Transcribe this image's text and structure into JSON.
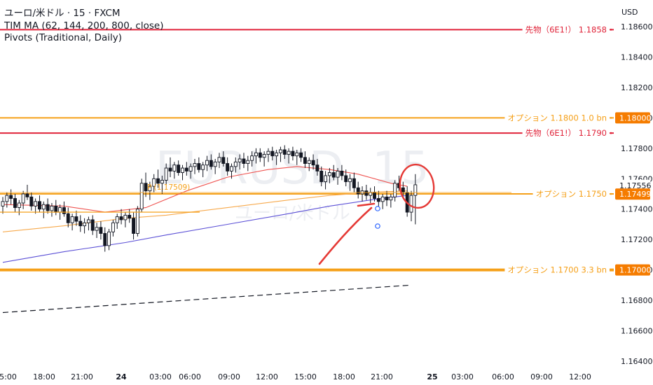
{
  "header": {
    "symbol": "ユーロ/米ドル · 15 · FXCM",
    "indicator_ma": "TIM MA (62, 144, 200, 800, close)",
    "indicator_pivots": "Pivots (Traditional, Daily)",
    "currency": "USD"
  },
  "watermark": {
    "symbol": "EURUSD, 15",
    "name": "ユーロ/米ドル"
  },
  "colors": {
    "futures_line": "#e0243a",
    "option_line": "#f5a019",
    "candle": "#131722",
    "ma_fast": "#ef5350",
    "ma_mid": "#f7a94b",
    "ma_slow": "#5b50d6",
    "annotation": "#e53935",
    "label_bg": "#f57c00"
  },
  "chart_data": {
    "type": "candlestick",
    "ylim": [
      1.1635,
      1.1872
    ],
    "y_ticks": [
      "1.18600",
      "1.18400",
      "1.18200",
      "1.18000",
      "1.17800",
      "1.17600",
      "1.17400",
      "1.17200",
      "1.17000",
      "1.16800",
      "1.16600",
      "1.16400"
    ],
    "x_ticks": [
      "15:00",
      "18:00",
      "21:00",
      "24",
      "03:00",
      "06:00",
      "09:00",
      "12:00",
      "15:00",
      "18:00",
      "21:00",
      "25",
      "03:00",
      "06:00",
      "09:00",
      "12:00"
    ],
    "price_labels": [
      {
        "text": "1.18000",
        "value": 1.18,
        "style": "filled"
      },
      {
        "text": "1.17556",
        "value": 1.17556,
        "style": "plain"
      },
      {
        "text": "1.17499",
        "value": 1.17499,
        "style": "filled"
      },
      {
        "text": "1.17000",
        "value": 1.17,
        "style": "filled"
      }
    ],
    "horizontal_levels": [
      {
        "value": 1.1858,
        "label": "先物（6E1!）  1.1858",
        "kind": "futures",
        "width": 2
      },
      {
        "value": 1.18,
        "label": "オプション  1.1800  1.0 bn",
        "kind": "option",
        "width": 2
      },
      {
        "value": 1.179,
        "label": "先物（6E1!）  1.1790",
        "kind": "futures",
        "width": 2
      },
      {
        "value": 1.175,
        "label": "オプション  1.1750",
        "kind": "option",
        "width": 2
      },
      {
        "value": 1.17,
        "label": "オプション  1.1700  3.3 bn",
        "kind": "option",
        "width": 4
      }
    ],
    "pivot": {
      "label": "P (1.17509)",
      "value": 1.17509
    },
    "candles": [
      [
        1.1742,
        1.1748,
        1.1737,
        1.1745
      ],
      [
        1.1745,
        1.1751,
        1.1741,
        1.1749
      ],
      [
        1.1749,
        1.1753,
        1.1743,
        1.1747
      ],
      [
        1.1747,
        1.175,
        1.1738,
        1.1741
      ],
      [
        1.1741,
        1.1746,
        1.1736,
        1.1744
      ],
      [
        1.1744,
        1.1752,
        1.174,
        1.175
      ],
      [
        1.175,
        1.1756,
        1.1746,
        1.1748
      ],
      [
        1.1748,
        1.1751,
        1.1739,
        1.1742
      ],
      [
        1.1742,
        1.1747,
        1.1737,
        1.1745
      ],
      [
        1.1745,
        1.1749,
        1.1738,
        1.174
      ],
      [
        1.174,
        1.1745,
        1.1734,
        1.1743
      ],
      [
        1.1743,
        1.1747,
        1.1737,
        1.1739
      ],
      [
        1.1739,
        1.1744,
        1.1735,
        1.1742
      ],
      [
        1.1742,
        1.1746,
        1.1736,
        1.1738
      ],
      [
        1.1738,
        1.1743,
        1.1733,
        1.1741
      ],
      [
        1.1741,
        1.1745,
        1.1735,
        1.1737
      ],
      [
        1.1737,
        1.1741,
        1.1728,
        1.1731
      ],
      [
        1.1731,
        1.1737,
        1.1726,
        1.1735
      ],
      [
        1.1735,
        1.1739,
        1.1729,
        1.1732
      ],
      [
        1.1732,
        1.1736,
        1.1725,
        1.1729
      ],
      [
        1.1729,
        1.1734,
        1.1724,
        1.1731
      ],
      [
        1.1731,
        1.1735,
        1.1726,
        1.1733
      ],
      [
        1.1733,
        1.1736,
        1.1723,
        1.1726
      ],
      [
        1.1726,
        1.1731,
        1.1721,
        1.1728
      ],
      [
        1.1728,
        1.1732,
        1.172,
        1.1724
      ],
      [
        1.1724,
        1.1728,
        1.1712,
        1.1716
      ],
      [
        1.1716,
        1.1727,
        1.1713,
        1.1725
      ],
      [
        1.1725,
        1.1733,
        1.1722,
        1.1731
      ],
      [
        1.1731,
        1.1737,
        1.1727,
        1.1735
      ],
      [
        1.1735,
        1.174,
        1.173,
        1.1733
      ],
      [
        1.1733,
        1.1738,
        1.1728,
        1.1736
      ],
      [
        1.1736,
        1.174,
        1.1731,
        1.1734
      ],
      [
        1.1734,
        1.1738,
        1.172,
        1.1724
      ],
      [
        1.1724,
        1.1742,
        1.1722,
        1.174
      ],
      [
        1.174,
        1.176,
        1.1738,
        1.1757
      ],
      [
        1.1757,
        1.1764,
        1.1748,
        1.1752
      ],
      [
        1.1752,
        1.1758,
        1.1746,
        1.1755
      ],
      [
        1.1755,
        1.1763,
        1.1751,
        1.176
      ],
      [
        1.176,
        1.1766,
        1.1754,
        1.1757
      ],
      [
        1.1757,
        1.1762,
        1.175,
        1.1759
      ],
      [
        1.1759,
        1.177,
        1.1756,
        1.1767
      ],
      [
        1.1767,
        1.1774,
        1.1761,
        1.1765
      ],
      [
        1.1765,
        1.1771,
        1.176,
        1.1769
      ],
      [
        1.1769,
        1.1772,
        1.1762,
        1.1764
      ],
      [
        1.1764,
        1.1769,
        1.1759,
        1.1767
      ],
      [
        1.1767,
        1.1771,
        1.1762,
        1.1765
      ],
      [
        1.1765,
        1.177,
        1.176,
        1.1768
      ],
      [
        1.1768,
        1.1773,
        1.1763,
        1.177
      ],
      [
        1.177,
        1.1774,
        1.1764,
        1.1766
      ],
      [
        1.1766,
        1.1771,
        1.1761,
        1.1769
      ],
      [
        1.1769,
        1.1775,
        1.1765,
        1.1772
      ],
      [
        1.1772,
        1.1776,
        1.1766,
        1.1768
      ],
      [
        1.1768,
        1.1773,
        1.1763,
        1.1771
      ],
      [
        1.1771,
        1.1777,
        1.1767,
        1.1774
      ],
      [
        1.1774,
        1.1778,
        1.1768,
        1.177
      ],
      [
        1.177,
        1.1774,
        1.1762,
        1.1765
      ],
      [
        1.1765,
        1.177,
        1.176,
        1.1768
      ],
      [
        1.1768,
        1.1774,
        1.1764,
        1.1771
      ],
      [
        1.1771,
        1.1776,
        1.1766,
        1.1773
      ],
      [
        1.1773,
        1.1777,
        1.1767,
        1.177
      ],
      [
        1.177,
        1.1775,
        1.1765,
        1.1772
      ],
      [
        1.1772,
        1.1778,
        1.1768,
        1.1775
      ],
      [
        1.1775,
        1.178,
        1.177,
        1.1777
      ],
      [
        1.1777,
        1.178,
        1.1771,
        1.1774
      ],
      [
        1.1774,
        1.1778,
        1.1768,
        1.1776
      ],
      [
        1.1776,
        1.178,
        1.1771,
        1.1778
      ],
      [
        1.1778,
        1.1781,
        1.1772,
        1.1775
      ],
      [
        1.1775,
        1.1779,
        1.1769,
        1.1777
      ],
      [
        1.1777,
        1.1781,
        1.1771,
        1.1779
      ],
      [
        1.1779,
        1.1782,
        1.1773,
        1.1776
      ],
      [
        1.1776,
        1.178,
        1.177,
        1.1778
      ],
      [
        1.1778,
        1.1781,
        1.1772,
        1.1775
      ],
      [
        1.1775,
        1.1779,
        1.1769,
        1.1777
      ],
      [
        1.1777,
        1.178,
        1.1771,
        1.1774
      ],
      [
        1.1774,
        1.1778,
        1.1767,
        1.177
      ],
      [
        1.177,
        1.1774,
        1.1765,
        1.1772
      ],
      [
        1.1772,
        1.1776,
        1.1766,
        1.1769
      ],
      [
        1.1769,
        1.1773,
        1.1762,
        1.1765
      ],
      [
        1.1765,
        1.1768,
        1.1755,
        1.1758
      ],
      [
        1.1758,
        1.1765,
        1.1753,
        1.1762
      ],
      [
        1.1762,
        1.1767,
        1.1757,
        1.1764
      ],
      [
        1.1764,
        1.1769,
        1.1759,
        1.1761
      ],
      [
        1.1761,
        1.1767,
        1.1756,
        1.1765
      ],
      [
        1.1765,
        1.1769,
        1.1759,
        1.1762
      ],
      [
        1.1762,
        1.1766,
        1.1755,
        1.1758
      ],
      [
        1.1758,
        1.1763,
        1.1752,
        1.176
      ],
      [
        1.176,
        1.1764,
        1.1751,
        1.1754
      ],
      [
        1.1754,
        1.1758,
        1.1747,
        1.175
      ],
      [
        1.175,
        1.1755,
        1.1745,
        1.1752
      ],
      [
        1.1752,
        1.1756,
        1.1746,
        1.1749
      ],
      [
        1.1749,
        1.1754,
        1.1744,
        1.1751
      ],
      [
        1.1751,
        1.1755,
        1.1745,
        1.1747
      ],
      [
        1.1747,
        1.1752,
        1.1741,
        1.1745
      ],
      [
        1.1745,
        1.175,
        1.174,
        1.1748
      ],
      [
        1.1748,
        1.1752,
        1.1742,
        1.1746
      ],
      [
        1.1746,
        1.175,
        1.1741,
        1.1748
      ],
      [
        1.1748,
        1.1759,
        1.1745,
        1.1757
      ],
      [
        1.1757,
        1.1762,
        1.1752,
        1.1754
      ],
      [
        1.1754,
        1.1758,
        1.1748,
        1.1751
      ],
      [
        1.1751,
        1.1755,
        1.1735,
        1.1738
      ],
      [
        1.1738,
        1.1752,
        1.1732,
        1.1749
      ],
      [
        1.1749,
        1.1763,
        1.173,
        1.1756
      ]
    ],
    "moving_averages": [
      {
        "name": "MA 62",
        "color_key": "ma_fast",
        "points": [
          [
            0,
            1.1743
          ],
          [
            15,
            1.1742
          ],
          [
            25,
            1.1738
          ],
          [
            35,
            1.1741
          ],
          [
            45,
            1.1752
          ],
          [
            55,
            1.1761
          ],
          [
            65,
            1.1766
          ],
          [
            72,
            1.1768
          ],
          [
            80,
            1.1766
          ],
          [
            87,
            1.1763
          ],
          [
            95,
            1.1757
          ],
          [
            99,
            1.1755
          ]
        ]
      },
      {
        "name": "MA 144",
        "color_key": "ma_mid",
        "points": [
          [
            0,
            1.1725
          ],
          [
            15,
            1.1729
          ],
          [
            30,
            1.1734
          ],
          [
            40,
            1.1736
          ],
          [
            55,
            1.1741
          ],
          [
            70,
            1.1746
          ],
          [
            80,
            1.1749
          ],
          [
            90,
            1.1751
          ],
          [
            99,
            1.1752
          ]
        ]
      },
      {
        "name": "MA 200",
        "color_key": "ma_slow",
        "points": [
          [
            0,
            1.1705
          ],
          [
            15,
            1.1712
          ],
          [
            30,
            1.1718
          ],
          [
            40,
            1.1723
          ],
          [
            55,
            1.173
          ],
          [
            70,
            1.1737
          ],
          [
            80,
            1.1742
          ],
          [
            90,
            1.1746
          ],
          [
            99,
            1.1749
          ]
        ]
      },
      {
        "name": "MA 800",
        "color_key": "candle",
        "style": "dashed",
        "points": [
          [
            0,
            1.1672
          ],
          [
            99,
            1.169
          ]
        ]
      }
    ]
  }
}
